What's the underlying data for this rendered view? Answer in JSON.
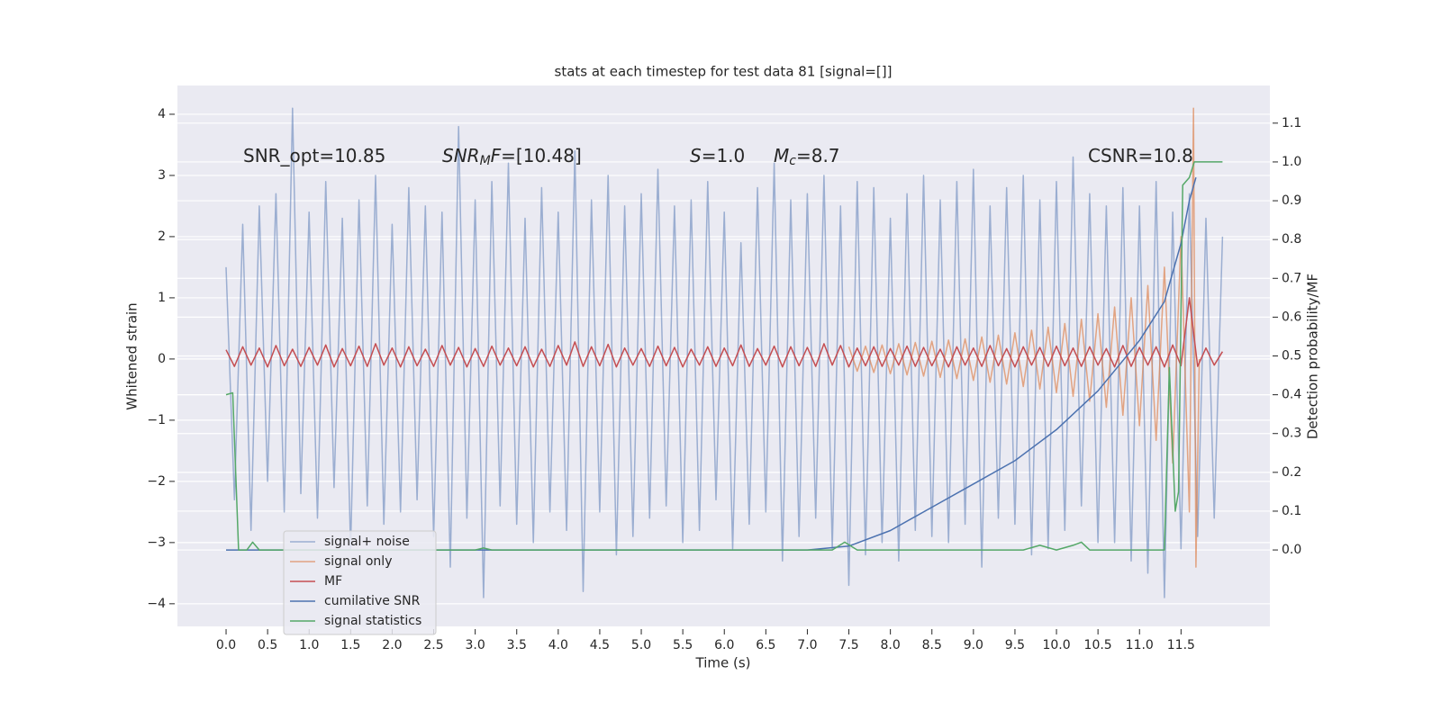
{
  "chart_data": {
    "type": "line",
    "title": "stats at each timestep for test data 81 [signal=[]]",
    "xlabel": "Time (s)",
    "ylabel": "Whitened strain",
    "y2label": "Detection probability/MF",
    "xlim": [
      -0.586,
      12.57
    ],
    "ylim": [
      -4.37,
      4.47
    ],
    "y2lim": [
      -0.197,
      1.197
    ],
    "grid": true,
    "xticks": [
      {
        "value": 0,
        "label": "0.0"
      },
      {
        "value": 0.5,
        "label": "0.5"
      },
      {
        "value": 1,
        "label": "1.0"
      },
      {
        "value": 1.5,
        "label": "1.5"
      },
      {
        "value": 2,
        "label": "2.0"
      },
      {
        "value": 2.5,
        "label": "2.5"
      },
      {
        "value": 3,
        "label": "3.0"
      },
      {
        "value": 3.5,
        "label": "3.5"
      },
      {
        "value": 4,
        "label": "4.0"
      },
      {
        "value": 4.5,
        "label": "4.5"
      },
      {
        "value": 5,
        "label": "5.0"
      },
      {
        "value": 5.5,
        "label": "5.5"
      },
      {
        "value": 6,
        "label": "6.0"
      },
      {
        "value": 6.5,
        "label": "6.5"
      },
      {
        "value": 7,
        "label": "7.0"
      },
      {
        "value": 7.5,
        "label": "7.5"
      },
      {
        "value": 8,
        "label": "8.0"
      },
      {
        "value": 8.5,
        "label": "8.5"
      },
      {
        "value": 9,
        "label": "9.0"
      },
      {
        "value": 9.5,
        "label": "9.5"
      },
      {
        "value": 10,
        "label": "10.0"
      },
      {
        "value": 10.5,
        "label": "10.5"
      },
      {
        "value": 11,
        "label": "11.0"
      },
      {
        "value": 11.5,
        "label": "11.5"
      }
    ],
    "yticks": [
      {
        "value": -4,
        "label": "−4"
      },
      {
        "value": -3,
        "label": "−3"
      },
      {
        "value": -2,
        "label": "−2"
      },
      {
        "value": -1,
        "label": "−1"
      },
      0,
      1,
      2,
      3,
      4
    ],
    "y2ticks": [
      {
        "value": 0,
        "label": "0.0"
      },
      {
        "value": 0.1,
        "label": "0.1"
      },
      {
        "value": 0.2,
        "label": "0.2"
      },
      {
        "value": 0.3,
        "label": "0.3"
      },
      {
        "value": 0.4,
        "label": "0.4"
      },
      {
        "value": 0.5,
        "label": "0.5"
      },
      {
        "value": 0.6,
        "label": "0.6"
      },
      {
        "value": 0.7,
        "label": "0.7"
      },
      {
        "value": 0.8,
        "label": "0.8"
      },
      {
        "value": 0.9,
        "label": "0.9"
      },
      {
        "value": 1,
        "label": "1.0"
      },
      {
        "value": 1.1,
        "label": "1.1"
      }
    ],
    "annotations": [
      [
        {
          "text": "SNR_opt=10.85"
        }
      ],
      [
        {
          "text": "SNR",
          "italic": true
        },
        {
          "text": "M",
          "italic": true,
          "sub": true
        },
        {
          "text": "F",
          "italic": true
        },
        {
          "text": "=[10.48]"
        }
      ],
      [
        {
          "text": "S",
          "italic": true
        },
        {
          "text": "=1.0"
        }
      ],
      [
        {
          "text": "M",
          "italic": true
        },
        {
          "text": "c",
          "italic": true,
          "sub": true
        },
        {
          "text": "=8.7"
        }
      ],
      [
        {
          "text": "CSNR=10.8"
        }
      ]
    ],
    "x": [
      0,
      0.1,
      0.2,
      0.3,
      0.4,
      0.5,
      0.6,
      0.7,
      0.8,
      0.9,
      1,
      1.1,
      1.2,
      1.3,
      1.4,
      1.5,
      1.6,
      1.7,
      1.8,
      1.9,
      2,
      2.1,
      2.2,
      2.3,
      2.4,
      2.5,
      2.6,
      2.7,
      2.8,
      2.9,
      3,
      3.1,
      3.2,
      3.3,
      3.4,
      3.5,
      3.6,
      3.7,
      3.8,
      3.9,
      4,
      4.1,
      4.2,
      4.3,
      4.4,
      4.5,
      4.6,
      4.7,
      4.8,
      4.9,
      5,
      5.1,
      5.2,
      5.3,
      5.4,
      5.5,
      5.6,
      5.7,
      5.8,
      5.9,
      6,
      6.1,
      6.2,
      6.3,
      6.4,
      6.5,
      6.6,
      6.7,
      6.8,
      6.9,
      7,
      7.1,
      7.2,
      7.3,
      7.4,
      7.5,
      7.6,
      7.7,
      7.8,
      7.9,
      8,
      8.1,
      8.2,
      8.3,
      8.4,
      8.5,
      8.6,
      8.7,
      8.8,
      8.9,
      9,
      9.1,
      9.2,
      9.3,
      9.4,
      9.5,
      9.6,
      9.7,
      9.8,
      9.9,
      10,
      10.1,
      10.2,
      10.3,
      10.4,
      10.5,
      10.6,
      10.7,
      10.8,
      10.9,
      11,
      11.1,
      11.2,
      11.3,
      11.4,
      11.5,
      11.6,
      11.7,
      11.8,
      11.9,
      12
    ],
    "series": [
      {
        "name": "signal+ noise",
        "color": "#4c72b0",
        "opacity": 0.5,
        "axis": "y",
        "values": [
          1.5,
          -2.3,
          2.2,
          -2.8,
          2.5,
          -2.0,
          2.7,
          -2.5,
          4.1,
          -2.2,
          2.4,
          -2.6,
          2.9,
          -2.1,
          2.3,
          -3.1,
          2.6,
          -2.4,
          3.0,
          -2.7,
          2.2,
          -2.5,
          2.8,
          -2.3,
          2.5,
          -2.9,
          2.4,
          -3.4,
          3.8,
          -2.6,
          2.6,
          -3.9,
          2.9,
          -2.4,
          3.2,
          -2.7,
          2.3,
          -3.0,
          2.8,
          -2.5,
          2.4,
          -2.8,
          3.4,
          -3.8,
          2.6,
          -2.5,
          3.0,
          -3.2,
          2.5,
          -2.9,
          2.7,
          -2.6,
          3.1,
          -2.4,
          2.5,
          -3.0,
          2.6,
          -2.8,
          2.9,
          -2.3,
          2.4,
          -3.1,
          1.9,
          -2.7,
          2.8,
          -2.5,
          3.2,
          -3.3,
          2.6,
          -2.9,
          2.7,
          -2.6,
          3.0,
          -3.1,
          2.5,
          -3.7,
          2.9,
          -3.2,
          2.8,
          -3.0,
          2.3,
          -3.3,
          2.7,
          -2.8,
          3.0,
          -2.9,
          2.6,
          -3.0,
          2.9,
          -2.7,
          3.1,
          -3.4,
          2.5,
          -2.6,
          2.8,
          -2.7,
          3.0,
          -3.2,
          2.6,
          -3.1,
          2.9,
          -2.8,
          3.3,
          -2.4,
          2.7,
          -3.0,
          2.5,
          -3.0,
          2.8,
          -3.3,
          2.5,
          -3.5,
          2.9,
          -3.9,
          2.4,
          -3.1,
          2.7,
          -2.9,
          2.3,
          -2.6,
          2.0
        ]
      },
      {
        "name": "signal only",
        "color": "#dd8452",
        "opacity": 0.7,
        "axis": "y",
        "x": [
          7.5,
          7.6,
          7.7,
          7.8,
          7.9,
          8,
          8.1,
          8.2,
          8.3,
          8.4,
          8.5,
          8.6,
          8.7,
          8.8,
          8.9,
          9,
          9.1,
          9.2,
          9.3,
          9.4,
          9.5,
          9.6,
          9.7,
          9.8,
          9.9,
          10,
          10.1,
          10.2,
          10.3,
          10.4,
          10.5,
          10.6,
          10.7,
          10.8,
          10.9,
          11,
          11.1,
          11.2,
          11.3,
          11.4,
          11.5,
          11.6,
          11.65,
          11.68,
          11.72
        ],
        "values": [
          0.2,
          -0.2,
          0.21,
          -0.22,
          0.23,
          -0.24,
          0.25,
          -0.26,
          0.27,
          -0.28,
          0.29,
          -0.3,
          0.31,
          -0.32,
          0.33,
          -0.35,
          0.36,
          -0.38,
          0.39,
          -0.41,
          0.43,
          -0.45,
          0.47,
          -0.49,
          0.52,
          -0.55,
          0.58,
          -0.61,
          0.65,
          -0.69,
          0.74,
          -0.79,
          0.85,
          -0.92,
          1.0,
          -1.09,
          1.2,
          -1.33,
          1.5,
          -1.7,
          2.0,
          -2.5,
          4.1,
          -3.4,
          0.0
        ]
      },
      {
        "name": "MF",
        "color": "#c44e52",
        "opacity": 1,
        "axis": "y",
        "values": [
          0.15,
          -0.12,
          0.2,
          -0.1,
          0.18,
          -0.13,
          0.22,
          -0.11,
          0.16,
          -0.12,
          0.19,
          -0.1,
          0.23,
          -0.13,
          0.17,
          -0.11,
          0.21,
          -0.12,
          0.25,
          -0.1,
          0.18,
          -0.13,
          0.2,
          -0.11,
          0.16,
          -0.12,
          0.22,
          -0.1,
          0.19,
          -0.13,
          0.17,
          -0.12,
          0.21,
          -0.1,
          0.18,
          -0.11,
          0.2,
          -0.13,
          0.16,
          -0.12,
          0.22,
          -0.1,
          0.28,
          -0.12,
          0.2,
          -0.11,
          0.24,
          -0.13,
          0.18,
          -0.1,
          0.17,
          -0.12,
          0.21,
          -0.11,
          0.19,
          -0.13,
          0.16,
          -0.1,
          0.2,
          -0.12,
          0.18,
          -0.11,
          0.23,
          -0.12,
          0.17,
          -0.1,
          0.21,
          -0.13,
          0.2,
          -0.11,
          0.19,
          -0.12,
          0.25,
          -0.1,
          0.22,
          -0.13,
          0.18,
          -0.11,
          0.2,
          -0.12,
          0.17,
          -0.1,
          0.21,
          -0.12,
          0.19,
          -0.11,
          0.16,
          -0.13,
          0.2,
          -0.1,
          0.18,
          -0.12,
          0.22,
          -0.11,
          0.17,
          -0.13,
          0.2,
          -0.1,
          0.19,
          -0.12,
          0.21,
          -0.11,
          0.18,
          -0.12,
          0.2,
          -0.1,
          0.17,
          -0.13,
          0.22,
          -0.12,
          0.19,
          -0.1,
          0.2,
          -0.13,
          0.23,
          -0.11,
          1.0,
          -0.12,
          0.18,
          -0.1,
          0.12
        ]
      },
      {
        "name": "cumilative SNR",
        "color": "#4c72b0",
        "opacity": 1,
        "axis": "y2",
        "x": [
          0,
          7.0,
          7.5,
          8.0,
          8.5,
          9.0,
          9.5,
          10.0,
          10.5,
          11.0,
          11.3,
          11.5,
          11.6,
          11.68
        ],
        "values": [
          0,
          0,
          0.01,
          0.05,
          0.11,
          0.17,
          0.23,
          0.31,
          0.41,
          0.54,
          0.64,
          0.79,
          0.9,
          0.96
        ]
      },
      {
        "name": "signal statistics",
        "color": "#55a868",
        "opacity": 1,
        "axis": "y2",
        "x": [
          0,
          0.08,
          0.15,
          0.25,
          0.32,
          0.4,
          3.0,
          3.1,
          3.2,
          7.3,
          7.45,
          7.6,
          9.6,
          9.8,
          10.0,
          10.2,
          10.3,
          10.4,
          11.3,
          11.36,
          11.43,
          11.47,
          11.52,
          11.6,
          11.66,
          12.0
        ],
        "values": [
          0.4,
          0.405,
          0.0,
          0.0,
          0.02,
          0.0,
          0.0,
          0.005,
          0.0,
          0.0,
          0.02,
          0.0,
          0.0,
          0.012,
          0.0,
          0.012,
          0.02,
          0.0,
          0.0,
          0.47,
          0.1,
          0.15,
          0.94,
          0.96,
          1.0,
          1.0
        ]
      }
    ]
  }
}
